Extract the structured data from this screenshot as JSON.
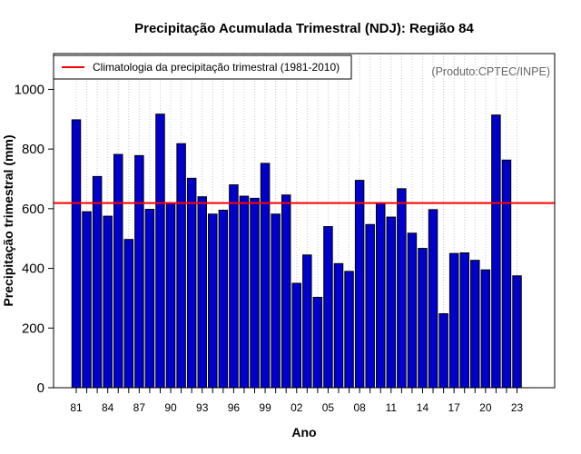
{
  "chart_data": {
    "type": "bar",
    "title": "Precipitação Acumulada Trimestral (NDJ): Região 84",
    "xlabel": "Ano",
    "ylabel": "Precipitação trimestral (mm)",
    "ylim": [
      0,
      1120
    ],
    "yticks": [
      0,
      200,
      400,
      600,
      800,
      1000
    ],
    "xtick_labels": [
      "81",
      "84",
      "87",
      "90",
      "93",
      "96",
      "99",
      "02",
      "05",
      "08",
      "11",
      "14",
      "17",
      "20",
      "23"
    ],
    "xtick_every": 3,
    "grid": "vertical dotted, one per year",
    "years": [
      1981,
      1982,
      1983,
      1984,
      1985,
      1986,
      1987,
      1988,
      1989,
      1990,
      1991,
      1992,
      1993,
      1994,
      1995,
      1996,
      1997,
      1998,
      1999,
      2000,
      2001,
      2002,
      2003,
      2004,
      2005,
      2006,
      2007,
      2008,
      2009,
      2010,
      2011,
      2012,
      2013,
      2014,
      2015,
      2016,
      2017,
      2018,
      2019,
      2020,
      2021,
      2022,
      2023
    ],
    "values": [
      898,
      590,
      708,
      575,
      782,
      497,
      778,
      598,
      917,
      620,
      818,
      702,
      640,
      582,
      595,
      680,
      642,
      635,
      752,
      582,
      646,
      350,
      445,
      303,
      540,
      416,
      390,
      695,
      547,
      620,
      572,
      667,
      518,
      467,
      597,
      248,
      450,
      452,
      427,
      395,
      914,
      763,
      375
    ],
    "bar_color": "#0000cd",
    "climatology": {
      "value": 619,
      "label": "Climatologia da precipitação trimestral (1981-2010)",
      "color": "#ff0000"
    },
    "legend_position": "top-left",
    "credit": "(Produto:CPTEC/INPE)"
  }
}
